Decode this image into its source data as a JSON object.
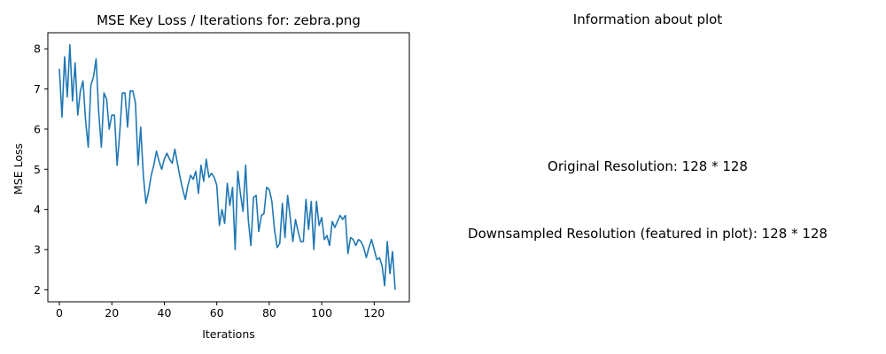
{
  "chart_data": {
    "type": "line",
    "title": "MSE Key Loss / Iterations for: zebra.png",
    "xlabel": "Iterations",
    "ylabel": "MSE Loss",
    "xlim": [
      -4.4,
      133.4
    ],
    "ylim": [
      1.7,
      8.4
    ],
    "xticks": [
      0,
      20,
      40,
      60,
      80,
      100,
      120
    ],
    "yticks": [
      2,
      3,
      4,
      5,
      6,
      7,
      8
    ],
    "grid": false,
    "line_color": "#1f77b4",
    "x": [
      0,
      1,
      2,
      3,
      4,
      5,
      6,
      7,
      8,
      9,
      10,
      11,
      12,
      13,
      14,
      15,
      16,
      17,
      18,
      19,
      20,
      21,
      22,
      23,
      24,
      25,
      26,
      27,
      28,
      29,
      30,
      31,
      32,
      33,
      34,
      35,
      36,
      37,
      38,
      39,
      40,
      41,
      42,
      43,
      44,
      45,
      46,
      47,
      48,
      49,
      50,
      51,
      52,
      53,
      54,
      55,
      56,
      57,
      58,
      59,
      60,
      61,
      62,
      63,
      64,
      65,
      66,
      67,
      68,
      69,
      70,
      71,
      72,
      73,
      74,
      75,
      76,
      77,
      78,
      79,
      80,
      81,
      82,
      83,
      84,
      85,
      86,
      87,
      88,
      89,
      90,
      91,
      92,
      93,
      94,
      95,
      96,
      97,
      98,
      99,
      100,
      101,
      102,
      103,
      104,
      105,
      106,
      107,
      108,
      109,
      110,
      111,
      112,
      113,
      114,
      115,
      116,
      117,
      118,
      119,
      120,
      121,
      122,
      123,
      124,
      125,
      126,
      127,
      128
    ],
    "y": [
      7.5,
      6.3,
      7.8,
      6.8,
      8.1,
      6.7,
      7.65,
      6.35,
      6.95,
      7.2,
      6.2,
      5.55,
      7.1,
      7.3,
      7.75,
      6.4,
      5.55,
      6.9,
      6.75,
      6.0,
      6.35,
      6.35,
      5.1,
      5.9,
      6.9,
      6.9,
      6.05,
      6.95,
      6.95,
      6.65,
      5.1,
      6.05,
      4.85,
      4.15,
      4.45,
      4.85,
      5.1,
      5.45,
      5.2,
      5.0,
      5.25,
      5.4,
      5.25,
      5.15,
      5.5,
      5.15,
      4.8,
      4.5,
      4.25,
      4.6,
      4.85,
      4.75,
      4.95,
      4.4,
      5.1,
      4.7,
      5.25,
      4.8,
      4.9,
      4.8,
      4.6,
      3.6,
      4.0,
      3.65,
      4.65,
      4.1,
      4.55,
      3.0,
      4.95,
      4.4,
      3.95,
      5.1,
      3.75,
      3.1,
      4.3,
      4.35,
      3.45,
      3.85,
      3.9,
      4.55,
      4.5,
      4.2,
      3.5,
      3.05,
      3.15,
      4.15,
      3.3,
      4.35,
      3.8,
      3.2,
      3.75,
      3.45,
      3.2,
      3.2,
      4.25,
      3.5,
      4.2,
      3.0,
      4.2,
      3.6,
      3.8,
      3.25,
      3.35,
      3.1,
      3.7,
      3.55,
      3.7,
      3.85,
      3.75,
      3.85,
      2.9,
      3.3,
      3.25,
      3.1,
      3.25,
      3.2,
      3.05,
      2.8,
      3.05,
      3.25,
      3.0,
      2.75,
      2.8,
      2.6,
      2.1,
      3.2,
      2.4,
      2.95,
      2.0
    ]
  },
  "info": {
    "title": "Information about plot",
    "original": "Original Resolution: 128 * 128",
    "downsampled": "Downsampled Resolution (featured in plot): 128 * 128"
  }
}
